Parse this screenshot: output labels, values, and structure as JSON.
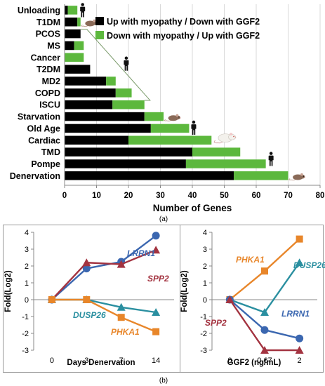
{
  "chart_data": [
    {
      "type": "bar",
      "stacked": true,
      "orientation": "horizontal",
      "categories": [
        "Unloading",
        "T1DM",
        "PCOS",
        "MS",
        "Cancer",
        "T2DM",
        "MD2",
        "COPD",
        "ISCU",
        "Starvation",
        "Old Age",
        "Cardiac",
        "TMD",
        "Pompe",
        "Denervation"
      ],
      "series": [
        {
          "name": "Up with myopathy / Down with GGF2",
          "color": "#000000",
          "values": [
            1,
            4,
            5,
            3,
            0,
            8,
            13,
            16,
            15,
            25,
            27,
            20,
            40,
            38,
            53
          ]
        },
        {
          "name": "Down with myopathy / Up with GGF2",
          "color": "#5cb83d",
          "values": [
            3,
            1,
            0,
            3,
            6,
            0,
            3,
            5,
            10,
            6,
            12,
            26,
            15,
            25,
            17
          ]
        }
      ],
      "xlabel": "Number of Genes",
      "xlim": [
        0,
        80
      ],
      "xticks": [
        "0",
        "10",
        "20",
        "30",
        "40",
        "50",
        "60",
        "70",
        "80"
      ],
      "legend_position": "top-right",
      "panel_label": "(a)"
    },
    {
      "type": "line",
      "x": [
        "0",
        "3",
        "7",
        "14"
      ],
      "series": [
        {
          "name": "LRRN1",
          "color": "#3b67b0",
          "marker": "circle",
          "values": [
            0,
            1.85,
            2.25,
            3.8
          ]
        },
        {
          "name": "SPP2",
          "color": "#a33340",
          "marker": "triangle",
          "values": [
            0,
            2.2,
            2.1,
            2.95
          ]
        },
        {
          "name": "DUSP26",
          "color": "#2a8fa0",
          "marker": "triangle",
          "values": [
            0,
            0,
            -0.45,
            -0.75
          ]
        },
        {
          "name": "PHKA1",
          "color": "#e8862a",
          "marker": "square",
          "values": [
            0,
            0,
            -1.05,
            -1.9
          ]
        }
      ],
      "xlabel": "Days Denervation",
      "ylabel": "Fold(Log2)",
      "ylim": [
        -3,
        4
      ],
      "yticks": [
        "4",
        "3",
        "2",
        "1",
        "0",
        "-1",
        "-2",
        "-3"
      ]
    },
    {
      "type": "line",
      "x": [
        "0",
        "0.67",
        "2"
      ],
      "series": [
        {
          "name": "PHKA1",
          "color": "#e8862a",
          "marker": "square",
          "values": [
            0,
            1.7,
            3.6
          ]
        },
        {
          "name": "DUSP26",
          "color": "#2a8fa0",
          "marker": "triangle",
          "values": [
            0,
            -0.75,
            2.2
          ]
        },
        {
          "name": "LRRN1",
          "color": "#3b67b0",
          "marker": "circle",
          "values": [
            0,
            -1.8,
            -2.3
          ]
        },
        {
          "name": "SPP2",
          "color": "#a33340",
          "marker": "triangle",
          "values": [
            0,
            -3,
            -3
          ]
        }
      ],
      "xlabel": "GGF2 (ng/mL)",
      "ylabel": "Fold(Log2)",
      "ylim": [
        -3,
        4
      ],
      "yticks": [
        "4",
        "3",
        "2",
        "1",
        "0",
        "-1",
        "-2",
        "-3"
      ],
      "panel_label": "(b)"
    }
  ],
  "icons": {
    "human": "human-silhouette-icon",
    "mouse": "mouse-icon",
    "rat": "rat-icon"
  }
}
